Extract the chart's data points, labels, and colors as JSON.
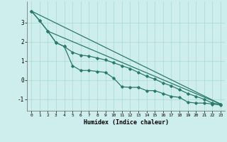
{
  "xlabel": "Humidex (Indice chaleur)",
  "background_color": "#ceeeed",
  "grid_color": "#aad8d5",
  "line_color": "#2a7a6a",
  "xlim": [
    -0.5,
    23.5
  ],
  "ylim": [
    -1.6,
    4.1
  ],
  "yticks": [
    -1,
    0,
    1,
    2,
    3
  ],
  "ytick_labels": [
    "-1",
    "0",
    "1",
    "2",
    "3"
  ],
  "xticks": [
    0,
    1,
    2,
    3,
    4,
    5,
    6,
    7,
    8,
    9,
    10,
    11,
    12,
    13,
    14,
    15,
    16,
    17,
    18,
    19,
    20,
    21,
    22,
    23
  ],
  "line1_x": [
    0,
    1,
    2,
    3,
    4,
    5,
    6,
    7,
    8,
    9,
    10,
    11,
    12,
    13,
    14,
    15,
    16,
    17,
    18,
    19,
    20,
    21,
    22,
    23
  ],
  "line1_y": [
    3.6,
    3.1,
    2.55,
    1.95,
    1.75,
    0.75,
    0.5,
    0.5,
    0.45,
    0.4,
    0.1,
    -0.35,
    -0.38,
    -0.38,
    -0.55,
    -0.55,
    -0.7,
    -0.85,
    -0.9,
    -1.15,
    -1.2,
    -1.2,
    -1.25,
    -1.3
  ],
  "line2_x": [
    0,
    1,
    2,
    3,
    4,
    5,
    6,
    7,
    8,
    9,
    10,
    11,
    12,
    13,
    14,
    15,
    16,
    17,
    18,
    19,
    20,
    21,
    22,
    23
  ],
  "line2_y": [
    3.6,
    3.1,
    2.55,
    1.95,
    1.75,
    1.45,
    1.3,
    1.25,
    1.15,
    1.05,
    0.9,
    0.75,
    0.6,
    0.4,
    0.2,
    0.05,
    -0.15,
    -0.3,
    -0.5,
    -0.7,
    -0.85,
    -1.0,
    -1.2,
    -1.25
  ],
  "line3_x": [
    0,
    23
  ],
  "line3_y": [
    3.6,
    -1.25
  ],
  "line4_x": [
    2,
    23
  ],
  "line4_y": [
    2.55,
    -1.25
  ]
}
